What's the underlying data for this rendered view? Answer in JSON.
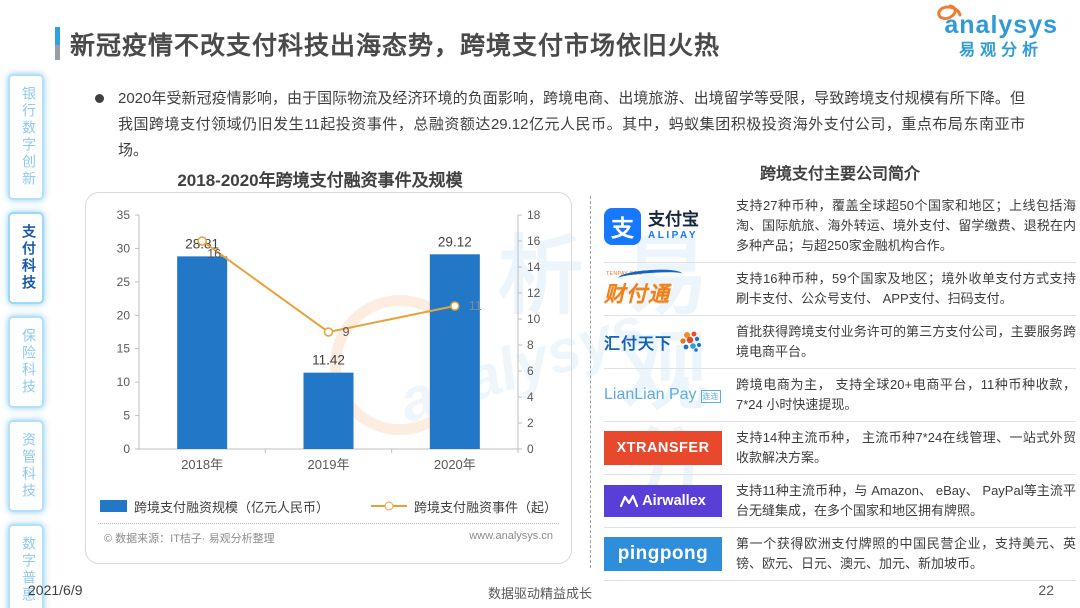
{
  "page": {
    "date": "2021/6/9",
    "footer_center": "数据驱动精益成长",
    "page_number": "22",
    "watermark_cn": "易观分析",
    "watermark_en": "analysys"
  },
  "header": {
    "title": "新冠疫情不改支付科技出海态势，跨境支付市场依旧火热",
    "logo_word": "analysys",
    "logo_cn": "易观分析"
  },
  "sidebar": {
    "items": [
      {
        "label": "银行数字创新",
        "active": false
      },
      {
        "label": "支付科技",
        "active": true
      },
      {
        "label": "保险科技",
        "active": false
      },
      {
        "label": "资管科技",
        "active": false
      },
      {
        "label": "数字普惠",
        "active": false
      }
    ]
  },
  "summary": {
    "bullet": "2020年受新冠疫情影响，由于国际物流及经济环境的负面影响，跨境电商、出境旅游、出境留学等受限，导致跨境支付规模有所下降。但我国跨境支付领域仍旧发生11起投资事件，总融资额达29.12亿元人民币。其中，蚂蚁集团积极投资海外支付公司，重点布局东南亚市场。"
  },
  "chart_data": {
    "type": "bar",
    "title": "2018-2020年跨境支付融资事件及规模",
    "categories": [
      "2018年",
      "2019年",
      "2020年"
    ],
    "series": [
      {
        "name": "跨境支付融资规模（亿元人民币）",
        "type": "bar",
        "axis": "left",
        "values": [
          28.81,
          11.42,
          29.12
        ],
        "color": "#2277C6"
      },
      {
        "name": "跨境支付融资事件（起）",
        "type": "line",
        "axis": "right",
        "values": [
          16,
          9,
          11
        ],
        "color": "#E9A23B"
      }
    ],
    "left_axis": {
      "min": 0,
      "max": 35,
      "step": 5
    },
    "right_axis": {
      "min": 0,
      "max": 18,
      "step": 2
    },
    "grid": false,
    "legend_position": "bottom",
    "source_note": "© 数据来源：IT桔子· 易观分析整理",
    "source_url": "www.analysys.cn"
  },
  "companies": {
    "title": "跨境支付主要公司简介",
    "rows": [
      {
        "name": "支付宝",
        "logo": {
          "mark": "支",
          "line1": "支付宝",
          "line2": "ALIPAY"
        },
        "description": "支持27种币种，覆盖全球超50个国家和地区；上线包括海淘、国际航旅、海外转运、境外支付、留学缴费、退税在内多种产品；与超250家金融机构合作。"
      },
      {
        "name": "财付通",
        "logo": {
          "tiny": "TENPAY.COM",
          "text": "财付通"
        },
        "description": "支持16种币种，59个国家及地区；境外收单支付方式支持刷卡支付、公众号支付、 APP支付、扫码支付。"
      },
      {
        "name": "汇付天下",
        "logo": {
          "text": "汇付天下"
        },
        "description": "首批获得跨境支付业务许可的第三方支付公司，主要服务跨境电商平台。"
      },
      {
        "name": "LianLian Pay",
        "logo": {
          "text": "LianLian Pay",
          "badge": "连连"
        },
        "description": "跨境电商为主， 支持全球20+电商平台，11种币种收款，7*24 小时快速提现。"
      },
      {
        "name": "XTRANSFER",
        "logo": {
          "text": "XTRANSFER"
        },
        "description": "支持14种主流币种， 主流币种7*24在线管理、一站式外贸收款解决方案。"
      },
      {
        "name": "Airwallex",
        "logo": {
          "text": "Airwallex"
        },
        "description": "支持11种主流币种，与 Amazon、 eBay、 PayPal等主流平台无缝集成，在多个国家和地区拥有牌照。"
      },
      {
        "name": "PingPong",
        "logo": {
          "text": "pingpong"
        },
        "description": "第一个获得欧洲支付牌照的中国民营企业，支持美元、英镑、欧元、日元、澳元、加元、新加坡币。"
      }
    ]
  }
}
